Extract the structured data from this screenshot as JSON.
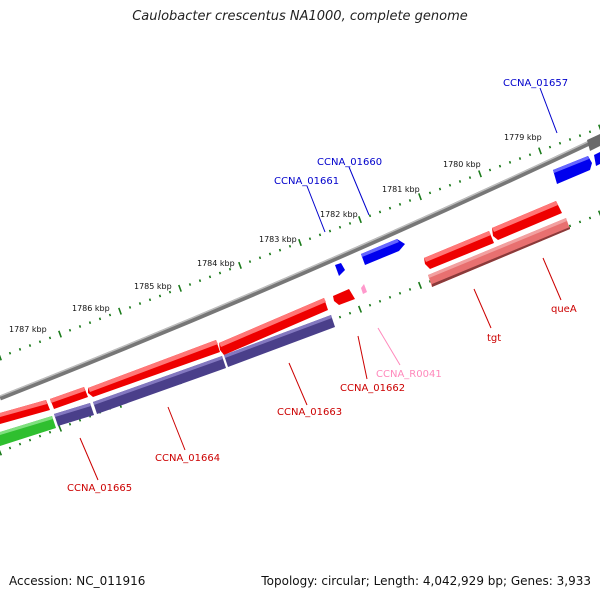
{
  "title": "Caulobacter crescentus NA1000, complete genome",
  "accession": "Accession: NC_011916",
  "summary": "Topology: circular; Length: 4,042,929 bp; Genes: 3,933",
  "scale_labels": [
    "1779 kbp",
    "1780 kbp",
    "1781 kbp",
    "1782 kbp",
    "1783 kbp",
    "1784 kbp",
    "1785 kbp",
    "1786 kbp",
    "1787 kbp"
  ],
  "genes": {
    "CCNA_01657": "CCNA_01657",
    "CCNA_01660": "CCNA_01660",
    "CCNA_01661": "CCNA_01661",
    "CCNA_01662": "CCNA_01662",
    "CCNA_R0041": "CCNA_R0041",
    "CCNA_01663": "CCNA_01663",
    "CCNA_01664": "CCNA_01664",
    "CCNA_01665": "CCNA_01665",
    "tgt": "tgt",
    "queA": "queA"
  },
  "colors": {
    "forward_gene": "#0000ee",
    "reverse_gene": "#ee0000",
    "reverse_cds": "#e87070",
    "rna": "#ff99cc",
    "purple_cds": "#4a3f8a",
    "green_cds": "#2fbf2f",
    "backbone": "#7a7a7a",
    "ticks": "#1a7a1a"
  }
}
